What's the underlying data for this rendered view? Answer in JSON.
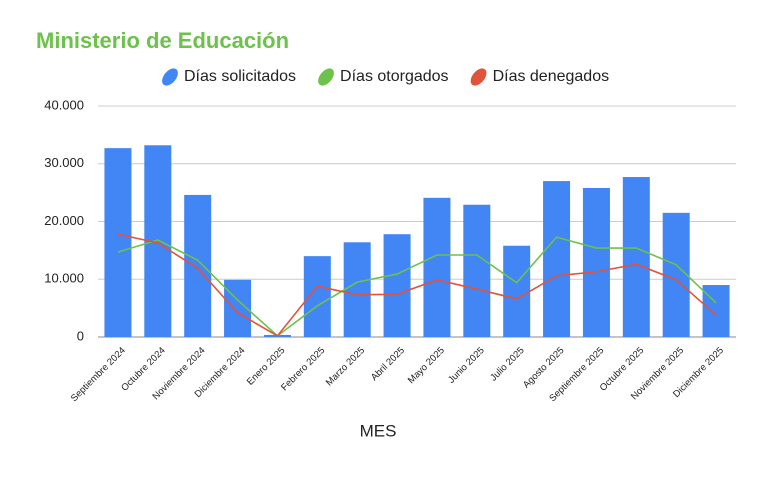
{
  "chart_data": {
    "type": "bar",
    "title": "Ministerio de Educación",
    "x_label": "MES",
    "categories": [
      "Septiembre 2024",
      "Octubre 2024",
      "Noviembre 2024",
      "Diciembre 2024",
      "Enero 2025",
      "Febrero 2025",
      "Marzo 2025",
      "Abril 2025",
      "Mayo 2025",
      "Junio 2025",
      "Julio 2025",
      "Agosto 2025",
      "Septiembre 2025",
      "Octubre 2025",
      "Noviembre 2025",
      "Diciembre 2025"
    ],
    "series": [
      {
        "name": "Días solicitados",
        "type": "bar",
        "color": "#4285f4",
        "values": [
          32700,
          33200,
          24600,
          9900,
          350,
          14000,
          16400,
          17800,
          24100,
          22900,
          15800,
          27000,
          25800,
          27700,
          21500,
          9000
        ]
      },
      {
        "name": "Días otorgados",
        "type": "line",
        "color": "#6cc24a",
        "values": [
          14700,
          16800,
          13300,
          6400,
          200,
          5400,
          9500,
          10900,
          14200,
          14200,
          9400,
          17300,
          15400,
          15400,
          12500,
          5900
        ]
      },
      {
        "name": "Días denegados",
        "type": "line",
        "color": "#e2533b",
        "values": [
          17800,
          16300,
          11900,
          4200,
          200,
          8800,
          7300,
          7400,
          9900,
          8300,
          6600,
          10600,
          11300,
          12600,
          9900,
          3800
        ]
      }
    ],
    "ylim": [
      0,
      40000
    ],
    "yticks": [
      0,
      {
        "value": 10000,
        "label": "10.000"
      },
      {
        "value": 20000,
        "label": "20.000"
      },
      {
        "value": 30000,
        "label": "30.000"
      },
      {
        "value": 40000,
        "label": "40.000"
      }
    ],
    "grid": true
  }
}
